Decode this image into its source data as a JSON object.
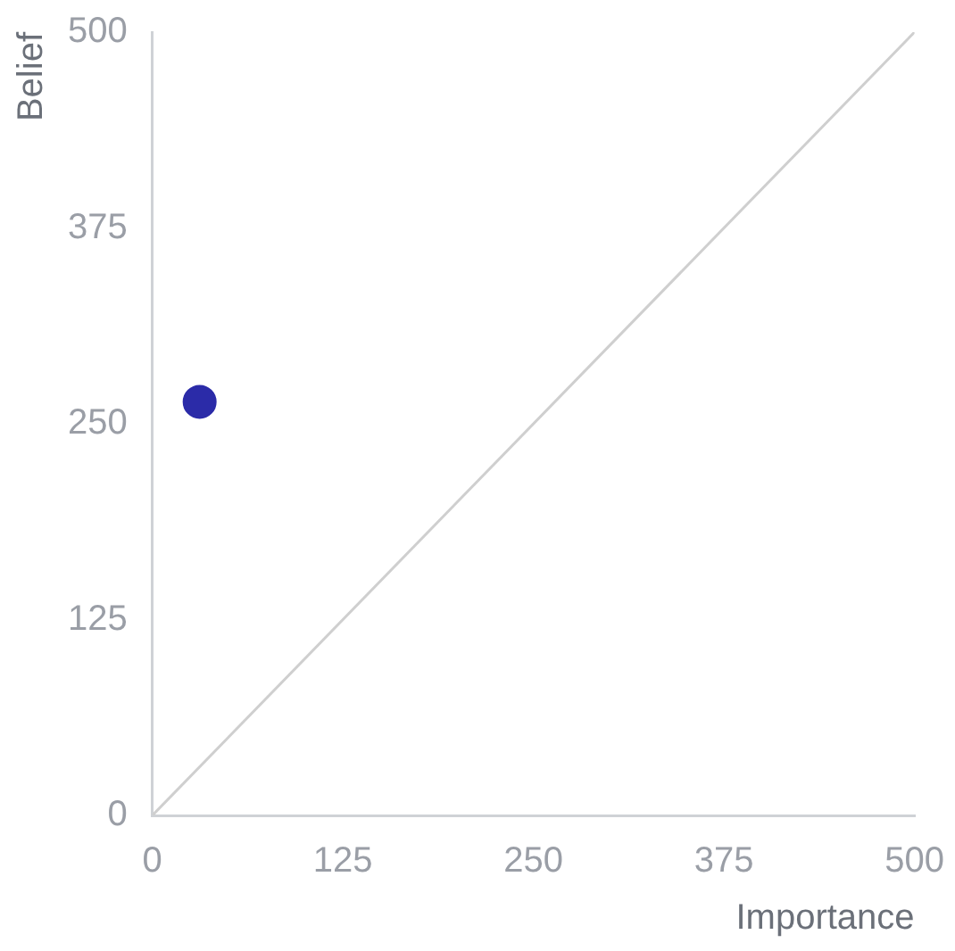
{
  "chart_data": {
    "type": "scatter",
    "xlabel": "Importance",
    "ylabel": "Belief",
    "xlim": [
      0,
      500
    ],
    "ylim": [
      0,
      500
    ],
    "xticks": [
      0,
      125,
      250,
      375,
      500
    ],
    "yticks": [
      0,
      125,
      250,
      375,
      500
    ],
    "grid": false,
    "legend": false,
    "marker": "circle",
    "series": [
      {
        "type": "scatter",
        "color": "#2b2ba8",
        "x": [
          31
        ],
        "values": [
          264
        ]
      },
      {
        "type": "line",
        "color": "#cfcfcf",
        "x": [
          0,
          500
        ],
        "values": [
          0,
          500
        ],
        "marker": "none",
        "line_style": "solid"
      }
    ]
  }
}
